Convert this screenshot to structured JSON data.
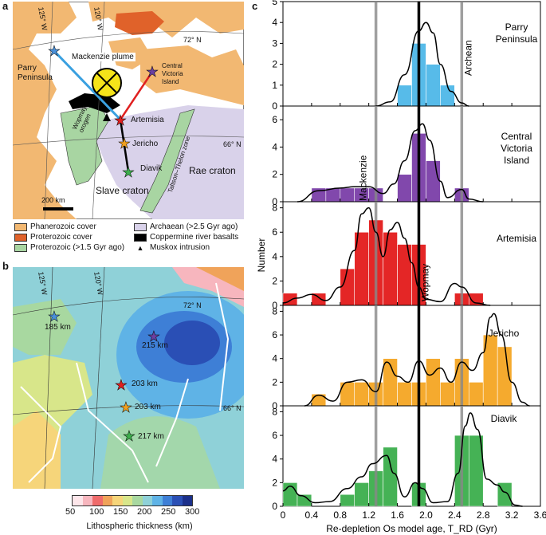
{
  "panels": {
    "a": "a",
    "b": "b",
    "c": "c"
  },
  "map_a": {
    "labels": {
      "parry": [
        "Parry",
        "Peninsula"
      ],
      "plume": "Mackenzie plume",
      "cvi": [
        "Central",
        "Victoria",
        "Island"
      ],
      "artemisia": "Artemisia",
      "jericho": "Jericho",
      "diavik": "Diavik",
      "slave": "Slave craton",
      "rae": "Rae craton",
      "wopmay": [
        "Wopmay",
        "orogen"
      ],
      "thelon": "Taltson–Thelon zone",
      "lat72": "72° N",
      "lat66": "66° N",
      "lon125": "125° W",
      "lon120": "120° W",
      "scale": "200 km"
    },
    "colors": {
      "phanerozoic": "#f2b872",
      "proterozoic": "#e0622a",
      "proterozoic_green": "#a8d5a2",
      "archaean": "#d9d2ea",
      "basalt": "#000000",
      "ocean": "#ffffff"
    }
  },
  "legend_a": [
    {
      "label": "Phanerozoic cover",
      "color": "#f2b872",
      "kind": "swatch"
    },
    {
      "label": "Proterozoic cover",
      "color": "#e0622a",
      "kind": "swatch"
    },
    {
      "label": "Proterozoic (>1.5 Gyr ago)",
      "color": "#a8d5a2",
      "kind": "swatch"
    },
    {
      "label": "Archaean (>2.5 Gyr ago)",
      "color": "#d9d2ea",
      "kind": "swatch"
    },
    {
      "label": "Coppermine river basalts",
      "color": "#000000",
      "kind": "swatch"
    },
    {
      "label": "Muskox intrusion",
      "color": "#000000",
      "kind": "triangle"
    }
  ],
  "map_b": {
    "sites": [
      {
        "name": "Parry Peninsula",
        "thickness": "185 km",
        "color": "#4a90d9"
      },
      {
        "name": "Central Victoria Island",
        "thickness": "215 km",
        "color": "#6b3fa0"
      },
      {
        "name": "Artemisia",
        "thickness": "203 km",
        "color": "#e02020"
      },
      {
        "name": "Jericho",
        "thickness": "203 km",
        "color": "#f0a020"
      },
      {
        "name": "Diavik",
        "thickness": "217 km",
        "color": "#3cae4c"
      }
    ],
    "lat72": "72° N",
    "lat66": "66° N",
    "lon125": "125° W",
    "lon120": "120° W"
  },
  "colorbar": {
    "ticks": [
      "50",
      "100",
      "150",
      "200",
      "250",
      "300"
    ],
    "label": "Lithospheric thickness (km)",
    "colors": [
      "#fde6ea",
      "#f7b6be",
      "#ef6b6b",
      "#f0a35a",
      "#f6d57a",
      "#d8e68a",
      "#a8d8a0",
      "#8fd1d8",
      "#5fb3e6",
      "#3e7fd6",
      "#2a4fb5",
      "#1b2f8a"
    ]
  },
  "chart_data": {
    "type": "bar",
    "xlabel": "Re-depletion Os model age, T_RD (Gyr)",
    "ylabel": "Number",
    "xlim": [
      0,
      3.6
    ],
    "xticks": [
      "0",
      "0.4",
      "0.8",
      "1.2",
      "1.6",
      "2.0",
      "2.4",
      "2.8",
      "3.2",
      "3.6"
    ],
    "bin_width": 0.2,
    "vertical_lines": [
      {
        "x": 1.3,
        "label": "Mackenzie",
        "color": "#888888"
      },
      {
        "x": 1.9,
        "label": "Wopmay",
        "color": "#000000"
      },
      {
        "x": 2.5,
        "label": "Archean",
        "color": "#888888"
      }
    ],
    "series": [
      {
        "name": "Parry Peninsula",
        "color": "#4fb8e8",
        "ylim": [
          0,
          5
        ],
        "yticks": [
          0,
          1,
          2,
          3,
          4,
          5
        ],
        "bins": [
          1.4,
          1.6,
          1.8,
          2.0,
          2.2,
          2.4
        ],
        "values": [
          0,
          1,
          3,
          2,
          1,
          0
        ],
        "curve": [
          [
            1.3,
            0
          ],
          [
            1.5,
            0.2
          ],
          [
            1.7,
            1.5
          ],
          [
            1.9,
            3.6
          ],
          [
            2.0,
            4.0
          ],
          [
            2.1,
            3.5
          ],
          [
            2.2,
            2.0
          ],
          [
            2.35,
            0.7
          ],
          [
            2.5,
            0.15
          ],
          [
            2.6,
            0.0
          ]
        ]
      },
      {
        "name": "Central Victoria Island",
        "color": "#7b3fa8",
        "ylim": [
          0,
          7
        ],
        "yticks": [
          0,
          2,
          4,
          6
        ],
        "bins": [
          0.4,
          0.6,
          0.8,
          1.0,
          1.2,
          1.6,
          1.8,
          2.0,
          2.4
        ],
        "values": [
          1,
          1,
          1,
          1,
          1,
          2,
          5,
          3,
          1
        ],
        "curve": [
          [
            0.2,
            0
          ],
          [
            0.5,
            0.8
          ],
          [
            0.8,
            1.0
          ],
          [
            1.0,
            1.1
          ],
          [
            1.2,
            1.1
          ],
          [
            1.4,
            0.6
          ],
          [
            1.55,
            1.3
          ],
          [
            1.7,
            3.0
          ],
          [
            1.85,
            5.2
          ],
          [
            1.95,
            5.7
          ],
          [
            2.05,
            4.5
          ],
          [
            2.2,
            1.5
          ],
          [
            2.3,
            0.3
          ],
          [
            2.5,
            0.9
          ],
          [
            2.6,
            0.2
          ],
          [
            2.8,
            0
          ]
        ]
      },
      {
        "name": "Artemisia",
        "color": "#e31b1b",
        "ylim": [
          0,
          8.5
        ],
        "yticks": [
          0,
          2,
          4,
          6,
          8
        ],
        "bins": [
          0.0,
          0.4,
          0.8,
          1.0,
          1.2,
          1.4,
          1.6,
          1.8,
          2.4,
          2.6
        ],
        "values": [
          1,
          1,
          3,
          6,
          7,
          6,
          5,
          5,
          1,
          1
        ],
        "curve": [
          [
            0,
            0.2
          ],
          [
            0.2,
            0.6
          ],
          [
            0.4,
            0.9
          ],
          [
            0.6,
            0.4
          ],
          [
            0.8,
            1.5
          ],
          [
            1.0,
            4.5
          ],
          [
            1.1,
            7.5
          ],
          [
            1.2,
            8.0
          ],
          [
            1.3,
            6.0
          ],
          [
            1.4,
            4.0
          ],
          [
            1.5,
            6.2
          ],
          [
            1.6,
            6.8
          ],
          [
            1.7,
            5.5
          ],
          [
            1.8,
            3.5
          ],
          [
            1.9,
            1.5
          ],
          [
            2.0,
            0.5
          ],
          [
            2.2,
            0.3
          ],
          [
            2.4,
            1.8
          ],
          [
            2.5,
            1.5
          ],
          [
            2.7,
            0.2
          ],
          [
            2.9,
            0
          ]
        ]
      },
      {
        "name": "Jericho",
        "color": "#f5a623",
        "ylim": [
          0,
          8.5
        ],
        "yticks": [
          0,
          2,
          4,
          6,
          8
        ],
        "bins": [
          0.4,
          0.8,
          1.0,
          1.2,
          1.4,
          1.6,
          1.8,
          2.0,
          2.2,
          2.4,
          2.6,
          2.8,
          3.0
        ],
        "values": [
          1,
          2,
          2,
          2,
          4,
          2,
          2,
          4,
          2,
          4,
          2,
          6,
          5
        ],
        "curve": [
          [
            0.3,
            0
          ],
          [
            0.5,
            0.9
          ],
          [
            0.7,
            0.4
          ],
          [
            0.9,
            2.0
          ],
          [
            1.1,
            2.2
          ],
          [
            1.3,
            1.2
          ],
          [
            1.45,
            3.7
          ],
          [
            1.6,
            2.5
          ],
          [
            1.75,
            2.0
          ],
          [
            1.9,
            3.8
          ],
          [
            2.05,
            2.6
          ],
          [
            2.2,
            3.2
          ],
          [
            2.35,
            2.0
          ],
          [
            2.5,
            3.7
          ],
          [
            2.65,
            3.0
          ],
          [
            2.8,
            4.5
          ],
          [
            2.9,
            7.5
          ],
          [
            2.95,
            7.8
          ],
          [
            3.05,
            6.0
          ],
          [
            3.2,
            2.0
          ],
          [
            3.35,
            0.3
          ],
          [
            3.45,
            0
          ]
        ]
      },
      {
        "name": "Diavik",
        "color": "#3cae4c",
        "ylim": [
          0,
          8.5
        ],
        "yticks": [
          0,
          2,
          4,
          6,
          8
        ],
        "bins": [
          0.0,
          0.2,
          0.8,
          1.0,
          1.2,
          1.4,
          1.8,
          2.4,
          2.6,
          3.0
        ],
        "values": [
          2,
          1,
          1,
          2,
          3,
          5,
          2,
          6,
          6,
          2
        ],
        "curve": [
          [
            0,
            1.3
          ],
          [
            0.1,
            1.7
          ],
          [
            0.25,
            0.9
          ],
          [
            0.45,
            0.3
          ],
          [
            0.65,
            0.4
          ],
          [
            0.9,
            1.5
          ],
          [
            1.1,
            2.5
          ],
          [
            1.25,
            3.6
          ],
          [
            1.45,
            4.3
          ],
          [
            1.55,
            2.8
          ],
          [
            1.7,
            0.8
          ],
          [
            1.85,
            2.0
          ],
          [
            1.95,
            1.5
          ],
          [
            2.1,
            0.3
          ],
          [
            2.3,
            0.4
          ],
          [
            2.45,
            2.8
          ],
          [
            2.55,
            6.8
          ],
          [
            2.62,
            7.9
          ],
          [
            2.72,
            6.5
          ],
          [
            2.85,
            2.3
          ],
          [
            3.0,
            1.8
          ],
          [
            3.1,
            1.2
          ],
          [
            3.25,
            0.1
          ],
          [
            3.35,
            0
          ]
        ]
      }
    ]
  }
}
